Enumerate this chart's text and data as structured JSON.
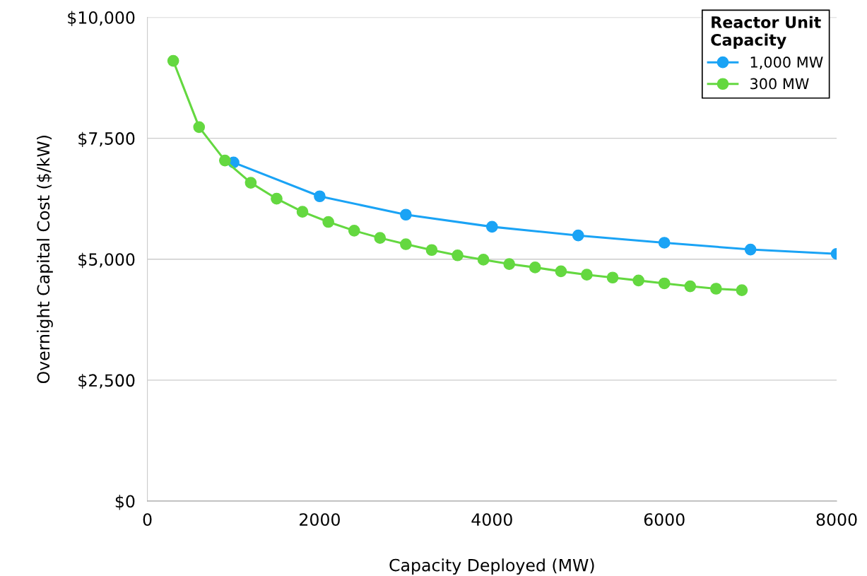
{
  "chart_data": {
    "type": "line",
    "xlabel": "Capacity Deployed (MW)",
    "ylabel": "Overnight Capital Cost ($/kW)",
    "legend_title": "Reactor Unit\nCapacity",
    "legend": "top right",
    "grid": "y",
    "marker": "circle",
    "line_style": "solid",
    "xlim": [
      0,
      8000
    ],
    "xticks": [
      0,
      2000,
      4000,
      6000,
      8000
    ],
    "ylim": [
      0,
      10000
    ],
    "yticks": [
      {
        "value": 0,
        "label": "$0"
      },
      {
        "value": 2500,
        "label": "$2,500"
      },
      {
        "value": 5000,
        "label": "$5,000"
      },
      {
        "value": 7500,
        "label": "$7,500"
      },
      {
        "value": 10000,
        "label": "$10,000"
      }
    ],
    "series": [
      {
        "name": "1,000 MW",
        "color": "#1aa3f5",
        "x": [
          1000,
          2000,
          3000,
          4000,
          5000,
          6000,
          7000,
          8000
        ],
        "values": [
          7000,
          6300,
          5920,
          5670,
          5490,
          5340,
          5200,
          5110
        ]
      },
      {
        "name": "300 MW",
        "color": "#64d840",
        "x": [
          300,
          600,
          900,
          1200,
          1500,
          1800,
          2100,
          2400,
          2700,
          3000,
          3300,
          3600,
          3900,
          4200,
          4500,
          4800,
          5100,
          5400,
          5700,
          6000,
          6300,
          6600,
          6900
        ],
        "values": [
          9100,
          7730,
          7040,
          6580,
          6250,
          5980,
          5770,
          5590,
          5440,
          5310,
          5190,
          5080,
          4990,
          4900,
          4830,
          4750,
          4680,
          4620,
          4560,
          4500,
          4440,
          4390,
          4360
        ]
      }
    ]
  }
}
